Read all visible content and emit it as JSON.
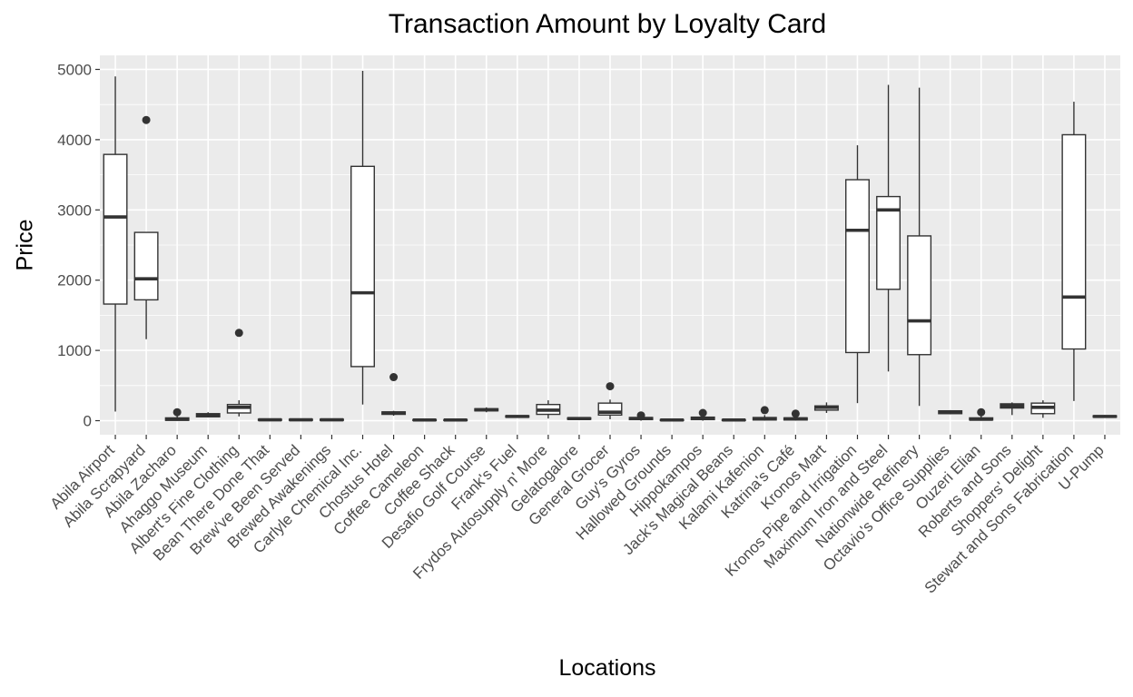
{
  "chart_data": {
    "type": "box",
    "title": "Transaction Amount by Loyalty Card",
    "xlabel": "Locations",
    "ylabel": "Price",
    "ylim": [
      -200,
      5200
    ],
    "yticks": [
      0,
      1000,
      2000,
      3000,
      4000,
      5000
    ],
    "grid": true,
    "legend": "none",
    "colors": {
      "panel": "#ebebeb",
      "grid": "#ffffff",
      "box_fill": "#ffffff",
      "box_line": "#333333",
      "text": "#4d4d4d"
    },
    "categories": [
      {
        "name": "Abila Airport",
        "ymin": 130,
        "q1": 1660,
        "median": 2900,
        "q3": 3790,
        "ymax": 4900,
        "outliers": []
      },
      {
        "name": "Abila Scrapyard",
        "ymin": 1160,
        "q1": 1720,
        "median": 2020,
        "q3": 2680,
        "ymax": 2680,
        "outliers": [
          4280
        ]
      },
      {
        "name": "Abila Zacharo",
        "ymin": 0,
        "q1": 5,
        "median": 20,
        "q3": 40,
        "ymax": 90,
        "outliers": [
          120
        ]
      },
      {
        "name": "Ahaggo Museum",
        "ymin": 45,
        "q1": 55,
        "median": 80,
        "q3": 100,
        "ymax": 120,
        "outliers": []
      },
      {
        "name": "Albert's Fine Clothing",
        "ymin": 60,
        "q1": 110,
        "median": 190,
        "q3": 230,
        "ymax": 290,
        "outliers": [
          1250
        ]
      },
      {
        "name": "Bean There Done That",
        "ymin": 0,
        "q1": 5,
        "median": 12,
        "q3": 20,
        "ymax": 30,
        "outliers": []
      },
      {
        "name": "Brew've Been Served",
        "ymin": 0,
        "q1": 5,
        "median": 12,
        "q3": 20,
        "ymax": 30,
        "outliers": []
      },
      {
        "name": "Brewed Awakenings",
        "ymin": 0,
        "q1": 5,
        "median": 12,
        "q3": 20,
        "ymax": 30,
        "outliers": []
      },
      {
        "name": "Carlyle Chemical Inc.",
        "ymin": 230,
        "q1": 770,
        "median": 1820,
        "q3": 3620,
        "ymax": 4980,
        "outliers": []
      },
      {
        "name": "Chostus Hotel",
        "ymin": 70,
        "q1": 90,
        "median": 110,
        "q3": 125,
        "ymax": 140,
        "outliers": [
          620
        ]
      },
      {
        "name": "Coffee Cameleon",
        "ymin": 0,
        "q1": 5,
        "median": 10,
        "q3": 15,
        "ymax": 20,
        "outliers": []
      },
      {
        "name": "Coffee Shack",
        "ymin": 0,
        "q1": 5,
        "median": 10,
        "q3": 15,
        "ymax": 20,
        "outliers": []
      },
      {
        "name": "Desafio Golf Course",
        "ymin": 120,
        "q1": 140,
        "median": 155,
        "q3": 170,
        "ymax": 190,
        "outliers": []
      },
      {
        "name": "Frank's Fuel",
        "ymin": 40,
        "q1": 50,
        "median": 60,
        "q3": 70,
        "ymax": 80,
        "outliers": []
      },
      {
        "name": "Frydos Autosupply n' More",
        "ymin": 30,
        "q1": 90,
        "median": 150,
        "q3": 230,
        "ymax": 290,
        "outliers": []
      },
      {
        "name": "Gelatogalore",
        "ymin": 10,
        "q1": 20,
        "median": 30,
        "q3": 40,
        "ymax": 50,
        "outliers": []
      },
      {
        "name": "General Grocer",
        "ymin": 20,
        "q1": 80,
        "median": 120,
        "q3": 250,
        "ymax": 300,
        "outliers": [
          490
        ]
      },
      {
        "name": "Guy's Gyros",
        "ymin": 0,
        "q1": 15,
        "median": 30,
        "q3": 45,
        "ymax": 60,
        "outliers": [
          75
        ]
      },
      {
        "name": "Hallowed Grounds",
        "ymin": 0,
        "q1": 5,
        "median": 10,
        "q3": 15,
        "ymax": 20,
        "outliers": []
      },
      {
        "name": "Hippokampos",
        "ymin": 0,
        "q1": 15,
        "median": 30,
        "q3": 50,
        "ymax": 80,
        "outliers": [
          110
        ]
      },
      {
        "name": "Jack's Magical Beans",
        "ymin": 0,
        "q1": 5,
        "median": 10,
        "q3": 15,
        "ymax": 20,
        "outliers": []
      },
      {
        "name": "Kalami Kafenion",
        "ymin": 0,
        "q1": 10,
        "median": 25,
        "q3": 45,
        "ymax": 80,
        "outliers": [
          150
        ]
      },
      {
        "name": "Katrina's Café",
        "ymin": 0,
        "q1": 10,
        "median": 25,
        "q3": 40,
        "ymax": 70,
        "outliers": [
          100
        ]
      },
      {
        "name": "Kronos Mart",
        "ymin": 110,
        "q1": 150,
        "median": 190,
        "q3": 210,
        "ymax": 260,
        "outliers": []
      },
      {
        "name": "Kronos Pipe and Irrigation",
        "ymin": 250,
        "q1": 970,
        "median": 2710,
        "q3": 3430,
        "ymax": 3920,
        "outliers": []
      },
      {
        "name": "Maximum Iron and Steel",
        "ymin": 700,
        "q1": 1870,
        "median": 3000,
        "q3": 3190,
        "ymax": 4780,
        "outliers": []
      },
      {
        "name": "Nationwide Refinery",
        "ymin": 210,
        "q1": 940,
        "median": 1420,
        "q3": 2630,
        "ymax": 4740,
        "outliers": []
      },
      {
        "name": "Octavio's Office Supplies",
        "ymin": 90,
        "q1": 100,
        "median": 120,
        "q3": 140,
        "ymax": 150,
        "outliers": []
      },
      {
        "name": "Ouzeri Elian",
        "ymin": 0,
        "q1": 10,
        "median": 20,
        "q3": 40,
        "ymax": 70,
        "outliers": [
          120
        ]
      },
      {
        "name": "Roberts and Sons",
        "ymin": 80,
        "q1": 180,
        "median": 210,
        "q3": 240,
        "ymax": 260,
        "outliers": []
      },
      {
        "name": "Shoppers' Delight",
        "ymin": 40,
        "q1": 100,
        "median": 190,
        "q3": 250,
        "ymax": 290,
        "outliers": []
      },
      {
        "name": "Stewart and Sons Fabrication",
        "ymin": 280,
        "q1": 1020,
        "median": 1760,
        "q3": 4070,
        "ymax": 4540,
        "outliers": []
      },
      {
        "name": "U-Pump",
        "ymin": 40,
        "q1": 50,
        "median": 60,
        "q3": 70,
        "ymax": 80,
        "outliers": []
      }
    ]
  }
}
